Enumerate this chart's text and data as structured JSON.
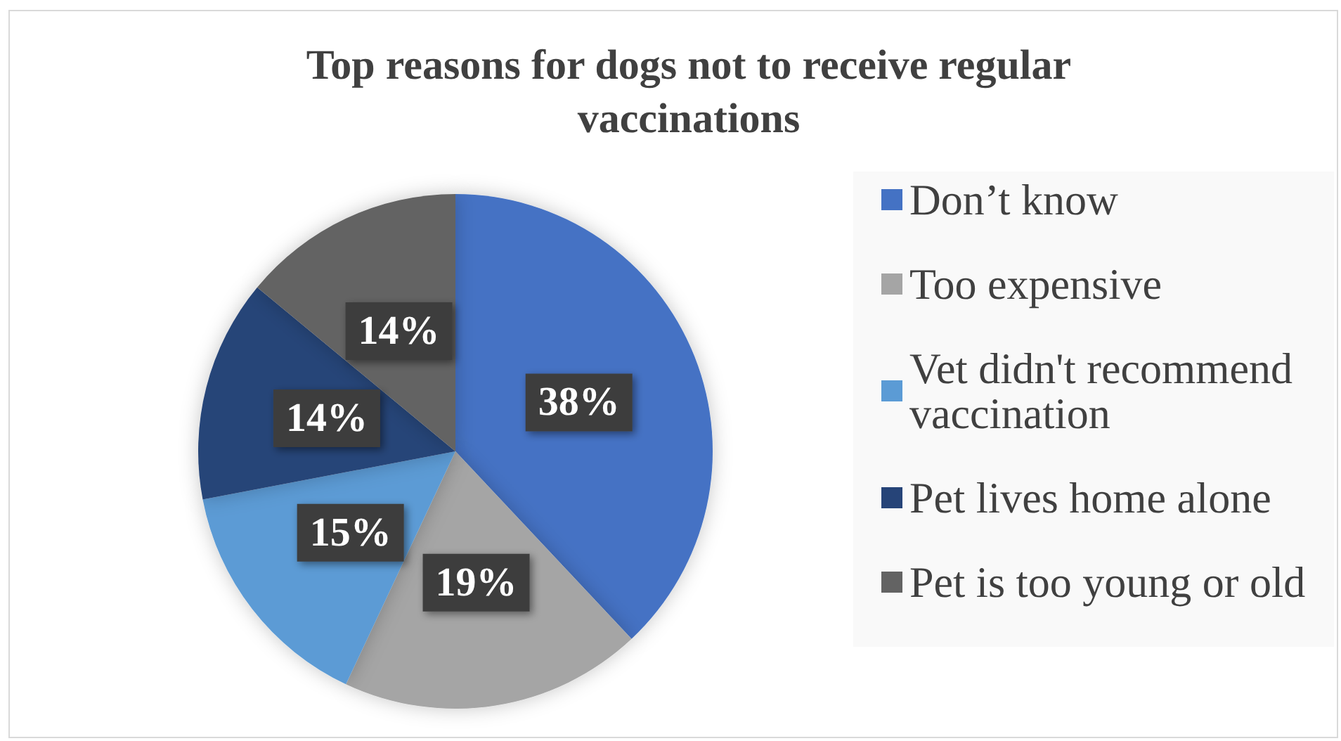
{
  "chart_data": {
    "type": "pie",
    "title": "Top reasons for dogs not to receive regular vaccinations",
    "categories": [
      "Don’t know",
      "Too expensive",
      "Vet didn't recommend vaccination",
      "Pet lives home alone",
      "Pet is too young or old"
    ],
    "values": [
      38,
      19,
      15,
      14,
      14
    ],
    "value_labels": [
      "38%",
      "19%",
      "15%",
      "14%",
      "14%"
    ],
    "colors": [
      "#4472c4",
      "#a5a5a5",
      "#5b9bd5",
      "#264478",
      "#636363"
    ],
    "legend": "right"
  }
}
